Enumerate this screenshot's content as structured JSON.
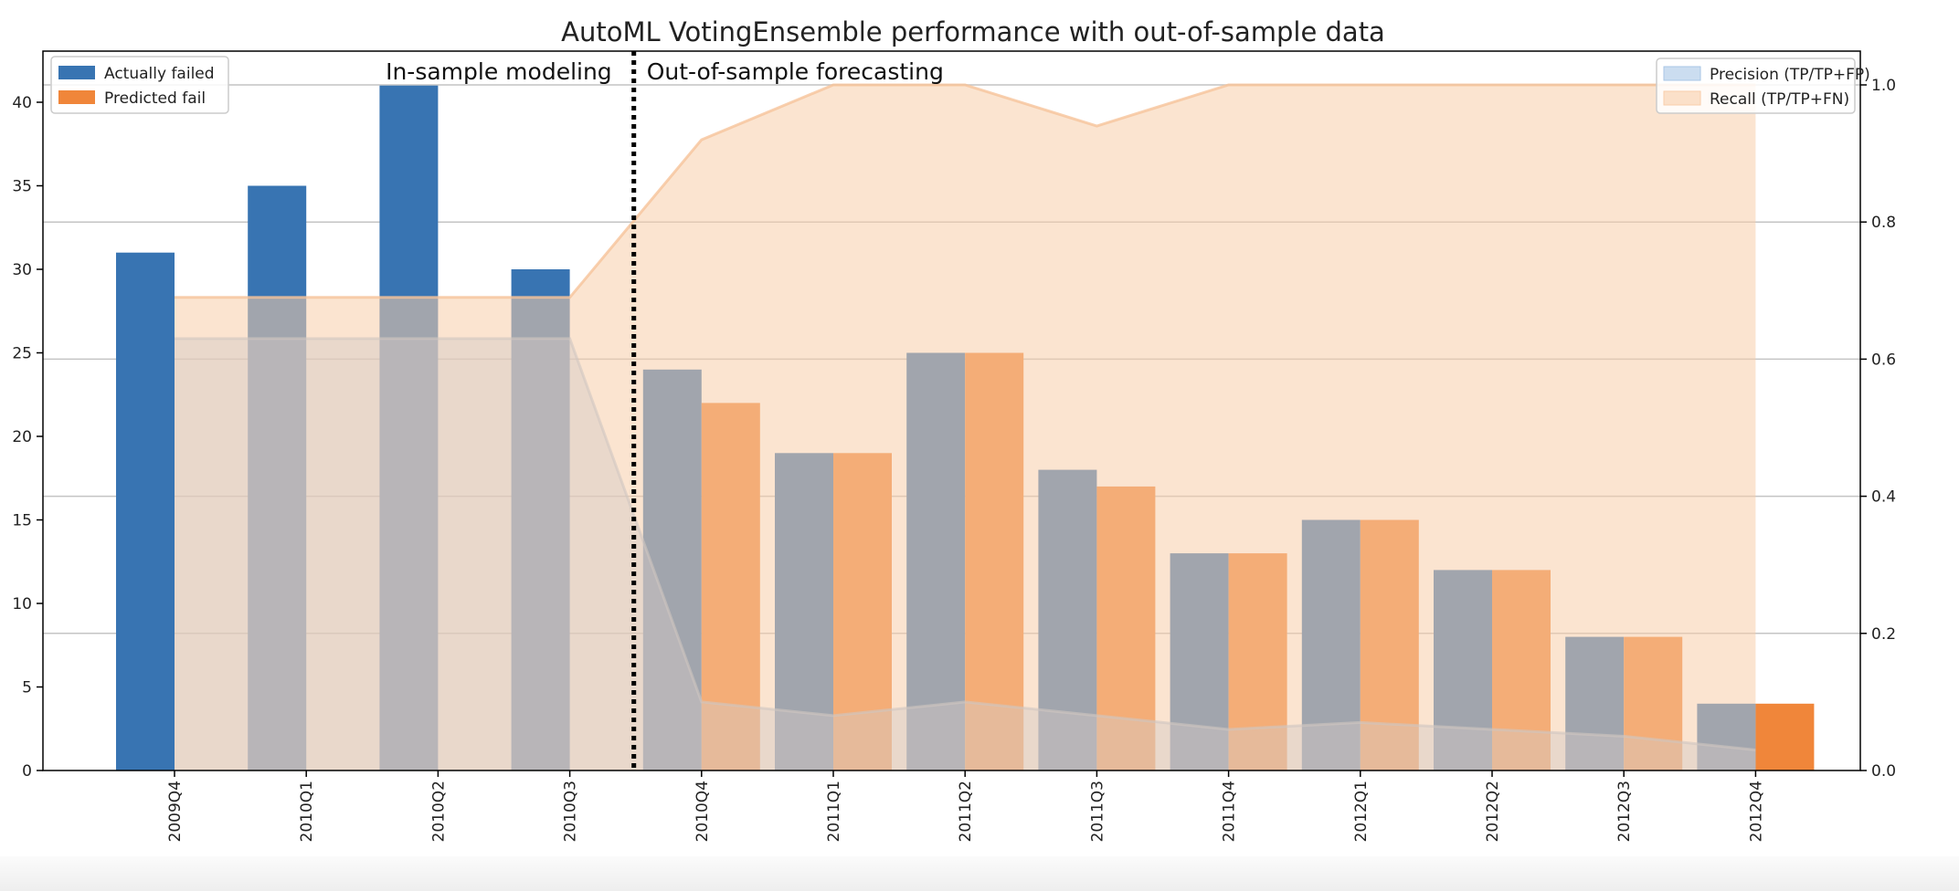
{
  "chart_data": {
    "type": "bar",
    "title": "AutoML VotingEnsemble performance with out-of-sample data",
    "categories": [
      "2009Q4",
      "2010Q1",
      "2010Q2",
      "2010Q3",
      "2010Q4",
      "2011Q1",
      "2011Q2",
      "2011Q3",
      "2011Q4",
      "2012Q1",
      "2012Q2",
      "2012Q3",
      "2012Q4"
    ],
    "series": [
      {
        "name": "Actually failed",
        "values": [
          31,
          35,
          41,
          30,
          24,
          19,
          25,
          18,
          13,
          15,
          12,
          8,
          4
        ],
        "color": "#3874b2"
      },
      {
        "name": "Predicted fail",
        "values": [
          null,
          null,
          null,
          null,
          22,
          19,
          25,
          17,
          13,
          15,
          12,
          8,
          4
        ],
        "color": "#f0863a"
      }
    ],
    "area_series": [
      {
        "name": "Precision (TP/TP+FP)",
        "axis": "right",
        "color": "#a8c6e6",
        "values": [
          0.63,
          0.63,
          0.63,
          0.63,
          0.1,
          0.08,
          0.1,
          0.08,
          0.06,
          0.07,
          0.06,
          0.05,
          0.03
        ]
      },
      {
        "name": "Recall (TP/TP+FN)",
        "axis": "right",
        "color": "#f8ceaa",
        "values": [
          0.69,
          0.69,
          0.69,
          0.69,
          0.92,
          1.0,
          1.0,
          0.94,
          1.0,
          1.0,
          1.0,
          1.0,
          1.0
        ]
      }
    ],
    "ylim": [
      0,
      41
    ],
    "y_ticks": [
      0,
      5,
      10,
      15,
      20,
      25,
      30,
      35,
      40
    ],
    "y2lim": [
      0,
      1.0
    ],
    "y2_ticks": [
      "0.0",
      "0.2",
      "0.4",
      "0.6",
      "0.8",
      "1.0"
    ],
    "annotations": [
      "In-sample modeling",
      "Out-of-sample forecasting"
    ],
    "divider_between": [
      "2010Q3",
      "2010Q4"
    ],
    "grid": "right-axis horizontal",
    "legend_left_placement": "top-left",
    "legend_right_placement": "top-right"
  }
}
